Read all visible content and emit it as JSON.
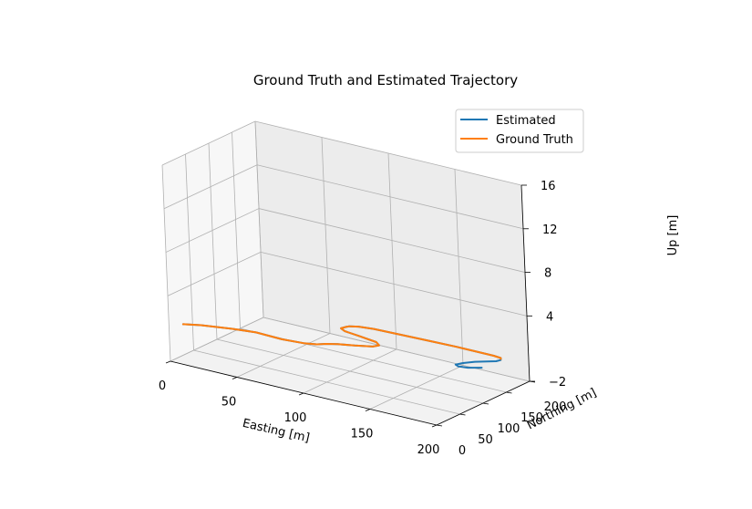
{
  "chart_data": {
    "type": "line",
    "projection": "3d",
    "title": "Ground Truth and Estimated Trajectory",
    "xlabel": "Easting [m]",
    "ylabel": "Northing [m]",
    "zlabel": "Up [m]",
    "xlim": [
      0,
      200
    ],
    "ylim": [
      0,
      200
    ],
    "zlim": [
      -2,
      16
    ],
    "xticks": [
      "0",
      "50",
      "100",
      "150",
      "200"
    ],
    "yticks": [
      "0",
      "50",
      "100",
      "150",
      "200"
    ],
    "zticks": [
      "−2",
      "4",
      "8",
      "12",
      "16"
    ],
    "grid": true,
    "legend_position": "top-right",
    "colors": {
      "estimated": "#1f77b4",
      "ground_truth": "#ff7f0e",
      "grid": "#b0b0b0"
    },
    "series": [
      {
        "name": "Estimated",
        "x": [
          190,
          183,
          178,
          176,
          179,
          185,
          191,
          195,
          196,
          194,
          188,
          178,
          160,
          140,
          120,
          100,
          90,
          85,
          84,
          83,
          88,
          100,
          115,
          120,
          118,
          108,
          98,
          92,
          88,
          80,
          65,
          45,
          30,
          10,
          0
        ],
        "y": [
          128,
          118,
          112,
          112,
          118,
          128,
          138,
          145,
          152,
          158,
          160,
          160,
          160,
          158,
          156,
          154,
          150,
          144,
          140,
          132,
          126,
          122,
          116,
          108,
          100,
          90,
          82,
          74,
          66,
          60,
          56,
          58,
          52,
          40,
          30
        ],
        "z": [
          0.4,
          0.4,
          0.5,
          0.6,
          0.7,
          0.8,
          0.8,
          0.8,
          0.8,
          0.8,
          0.8,
          0.8,
          0.8,
          0.8,
          0.8,
          0.8,
          0.8,
          0.8,
          0.8,
          0.8,
          0.8,
          0.8,
          0.8,
          0.8,
          0.8,
          0.8,
          0.8,
          0.8,
          0.8,
          0.8,
          0.8,
          0.8,
          0.8,
          0.8,
          0.8
        ]
      },
      {
        "name": "Ground Truth",
        "x": [
          195,
          194,
          188,
          178,
          160,
          140,
          120,
          100,
          90,
          85,
          84,
          83,
          88,
          100,
          115,
          120,
          118,
          108,
          98,
          92,
          88,
          80,
          65,
          45,
          30,
          10,
          0
        ],
        "y": [
          155,
          158,
          160,
          160,
          160,
          158,
          156,
          154,
          150,
          144,
          140,
          132,
          126,
          122,
          116,
          108,
          100,
          90,
          82,
          74,
          66,
          60,
          56,
          58,
          52,
          40,
          30
        ],
        "z": [
          0.8,
          0.8,
          0.8,
          0.8,
          0.8,
          0.8,
          0.8,
          0.8,
          0.8,
          0.8,
          0.8,
          0.8,
          0.8,
          0.8,
          0.8,
          0.8,
          0.8,
          0.8,
          0.8,
          0.8,
          0.8,
          0.8,
          0.8,
          0.8,
          0.8,
          0.8,
          0.8
        ]
      }
    ]
  }
}
